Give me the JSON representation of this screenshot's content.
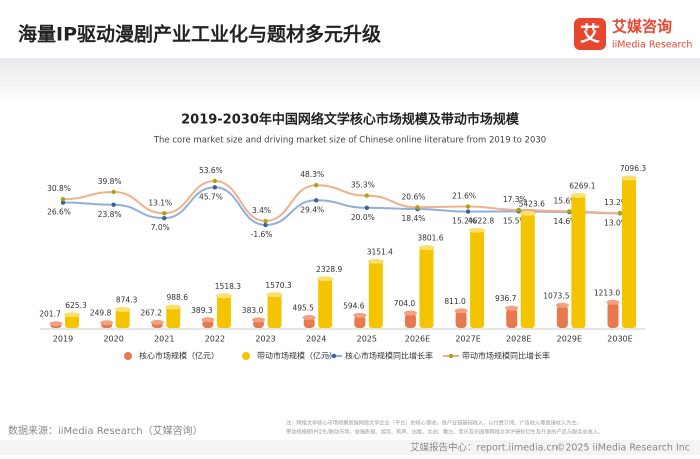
{
  "header": {
    "title": "海量IP驱动漫剧产业工业化与题材多元升级",
    "logo_mark": "艾",
    "logo_cn": "艾媒咨询",
    "logo_en": "iiMedia Research"
  },
  "chart_data": {
    "type": "combo",
    "title": "2019-2030年中国网络文学核心市场规模及带动市场规模",
    "subtitle": "The core market size and driving market size of Chinese online literature from 2019 to 2030",
    "categories": [
      "2019",
      "2020",
      "2021",
      "2022",
      "2023",
      "2024",
      "2025",
      "2026E",
      "2027E",
      "2028E",
      "2029E",
      "2030E"
    ],
    "series": [
      {
        "name": "核心市场规模（亿元）",
        "type": "bar",
        "color": "#e8784e",
        "values": [
          201.7,
          249.8,
          267.2,
          389.3,
          383.0,
          495.5,
          594.6,
          704.0,
          811.0,
          936.7,
          1073.5,
          1213.0
        ],
        "value_labels": [
          "201.7",
          "249.8",
          "267.2",
          "389.3",
          "383.0",
          "495.5",
          "594.6",
          "704.0",
          "811.0",
          "936.7",
          "1073.5",
          "1213.0"
        ]
      },
      {
        "name": "带动市场规模（亿元）",
        "type": "bar",
        "color": "#f5c400",
        "values": [
          625.3,
          874.3,
          988.6,
          1518.3,
          1570.3,
          2328.9,
          3151.4,
          3801.6,
          4622.8,
          5423.6,
          6269.1,
          7096.3
        ],
        "value_labels": [
          "625.3",
          "874.3",
          "988.6",
          "1518.3",
          "1570.3",
          "2328.9",
          "3151.4",
          "3801.6",
          "4622.8",
          "5423.6",
          "6269.1",
          "7096.3"
        ]
      },
      {
        "name": "核心市场规模同比增长率",
        "type": "line",
        "axis": "y2",
        "color": "#8fb0d8",
        "marker_color": "#3d5f9a",
        "values": [
          26.6,
          23.8,
          7.0,
          45.7,
          -1.6,
          29.4,
          20.0,
          18.4,
          15.2,
          15.5,
          14.6,
          13.0
        ],
        "value_labels": [
          "26.6%",
          "23.8%",
          "7.0%",
          "45.7%",
          "-1.6%",
          "29.4%",
          "20.0%",
          "18.4%",
          "15.2%",
          "15.5%",
          "14.6%",
          "13.0%"
        ]
      },
      {
        "name": "带动市场规模同比增长率",
        "type": "line",
        "axis": "y2",
        "color": "#f2b08a",
        "marker_color": "#a8a410",
        "values": [
          30.8,
          39.8,
          13.1,
          53.6,
          3.4,
          48.3,
          35.3,
          20.6,
          21.6,
          17.3,
          15.6,
          13.2
        ],
        "value_labels": [
          "30.8%",
          "39.8%",
          "13.1%",
          "53.6%",
          "3.4%",
          "48.3%",
          "35.3%",
          "20.6%",
          "21.6%",
          "17.3%",
          "15.6%",
          "13.2%"
        ]
      }
    ]
  },
  "source": "数据来源：iiMedia Research（艾媒咨询）",
  "note": [
    "注：网络文学核心市场规模是指网络文学企业（平台）的核心营收，是产业链基础收入，以付费订阅、广告收入等直接收入为主。",
    "带动规模即IP衍生/联动市场，是指影视、游戏、有声、出版、文创、舞台、音乐及乐园等网络文学IP授权衍生及开发的产品与服务总收入。"
  ],
  "footer": {
    "center": "艾媒报告中心：report.iimedia.cn",
    "copyright": "©2025 iiMedia Research Inc"
  }
}
